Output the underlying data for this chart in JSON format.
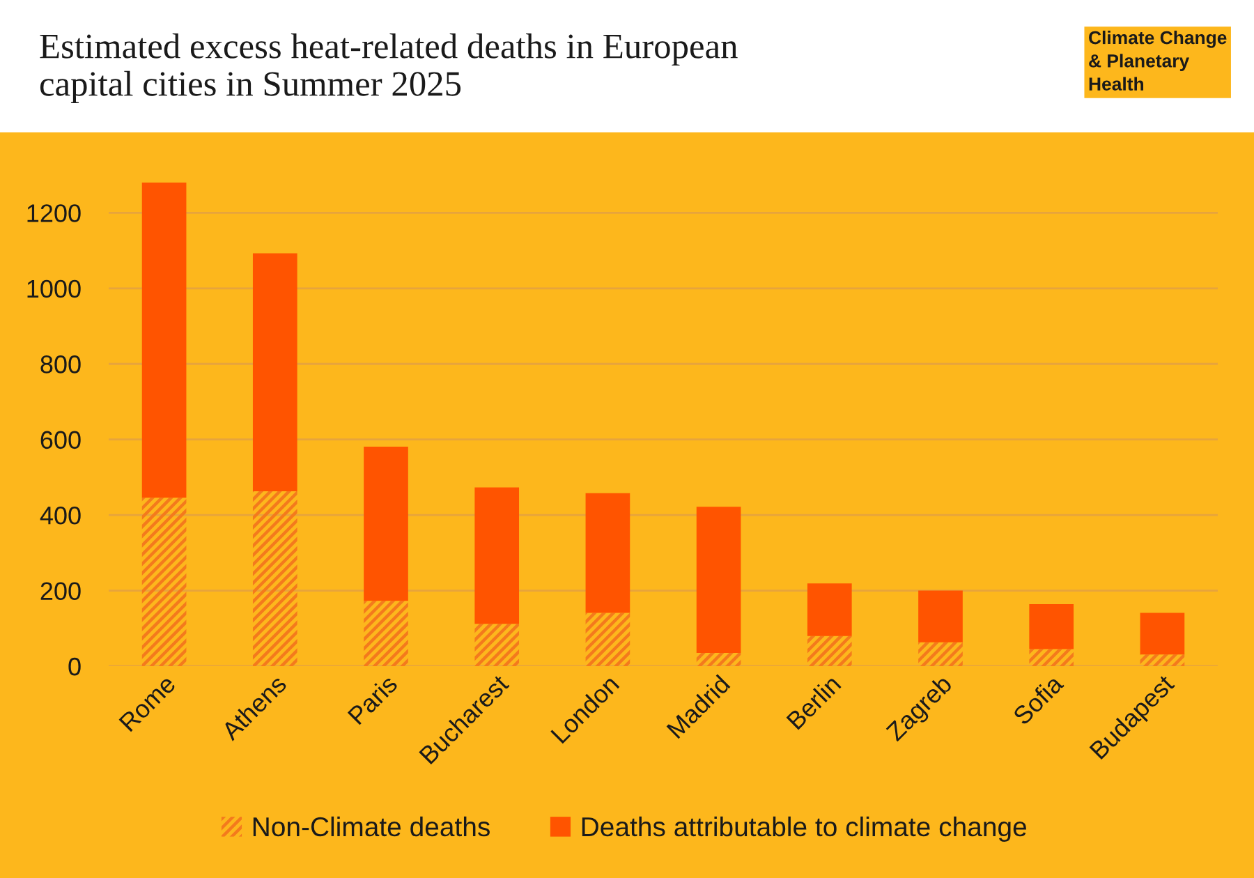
{
  "chart_data": {
    "type": "bar",
    "title": "Estimated excess heat-related deaths in European\ncapital cities in Summer 2025",
    "categories": [
      "Rome",
      "Athens",
      "Paris",
      "Bucharest",
      "London",
      "Madrid",
      "Berlin",
      "Zagreb",
      "Sofia",
      "Budapest"
    ],
    "stacked": true,
    "series": [
      {
        "name": "Non-Climate deaths",
        "color": "#f47a1c",
        "values": [
          446,
          463,
          173,
          112,
          141,
          35,
          80,
          63,
          45,
          31
        ]
      },
      {
        "name": "Deaths attributable to climate change",
        "color": "#ff5400",
        "values": [
          834,
          630,
          408,
          361,
          317,
          387,
          139,
          137,
          119,
          110
        ]
      }
    ],
    "ylim": [
      0,
      1280
    ],
    "yticks": [
      0,
      200,
      400,
      600,
      800,
      1000,
      1200
    ],
    "grid": "y",
    "legend": "bottom",
    "annotations": [
      "Climate Change\n& Planetary\nHealth"
    ]
  }
}
